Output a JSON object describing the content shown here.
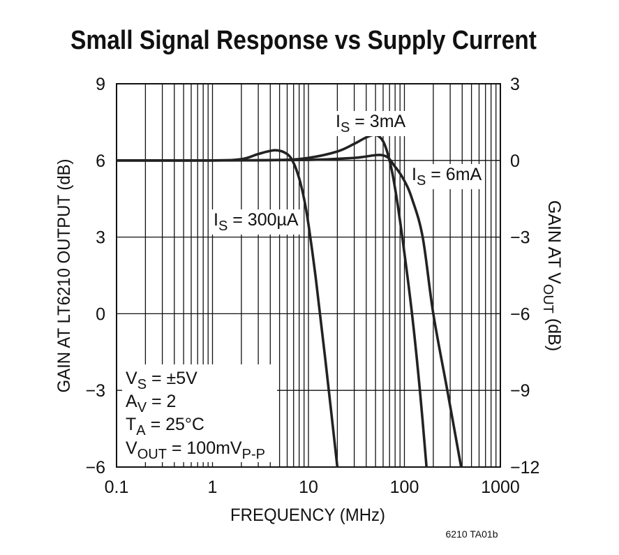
{
  "chart_data": {
    "type": "line",
    "title": "Small Signal Response vs Supply Current",
    "x_label": "FREQUENCY (MHz)",
    "y_label": "GAIN AT LT6210 OUTPUT (dB)",
    "y2_label": {
      "segments": [
        {
          "text": "GAIN AT V"
        },
        {
          "text": "OUT",
          "sub": true
        },
        {
          "text": " (dB)"
        }
      ]
    },
    "note": "6210 TA01b",
    "x_log": true,
    "log_minor_grid": true,
    "grid": true,
    "xlim": [
      0.1,
      1000
    ],
    "xticks": [
      0.1,
      1,
      10,
      100,
      1000
    ],
    "ylim": [
      -6,
      9
    ],
    "yticks": [
      {
        "value": -6,
        "label": "−6"
      },
      {
        "value": -3,
        "label": "−3"
      },
      0,
      3,
      6,
      9
    ],
    "y2lim": [
      -12,
      3
    ],
    "y2ticks": [
      {
        "value": -12,
        "label": "−12"
      },
      {
        "value": -9,
        "label": "−9"
      },
      {
        "value": -6,
        "label": "−6"
      },
      {
        "value": -3,
        "label": "−3"
      },
      0,
      3
    ],
    "series": [
      {
        "color": "#222222",
        "x": [
          0.1,
          1,
          2,
          3,
          4.5,
          6,
          7,
          8,
          9,
          10,
          12,
          15,
          20
        ],
        "values": [
          6,
          6,
          6.05,
          6.25,
          6.4,
          6.25,
          5.9,
          5.3,
          4.5,
          3.5,
          1.3,
          -1.8,
          -6
        ]
      },
      {
        "color": "#222222",
        "x": [
          0.1,
          1,
          5,
          10,
          20,
          30,
          40,
          50,
          60,
          70,
          80,
          95,
          120,
          145,
          170
        ],
        "values": [
          6,
          6,
          6.02,
          6.1,
          6.35,
          6.65,
          6.9,
          7.0,
          6.75,
          6.0,
          4.9,
          3,
          0,
          -3,
          -6
        ]
      },
      {
        "color": "#222222",
        "x": [
          0.1,
          1,
          10,
          30,
          60,
          80,
          100,
          120,
          155,
          200,
          280,
          390
        ],
        "values": [
          6,
          6,
          6.02,
          6.1,
          6.2,
          5.75,
          5.2,
          4.5,
          3,
          0,
          -3,
          -6
        ]
      }
    ],
    "annotations": [
      {
        "segments": [
          {
            "text": "I"
          },
          {
            "text": "S",
            "sub": true
          },
          {
            "text": " = 300µA"
          }
        ]
      },
      {
        "segments": [
          {
            "text": "I"
          },
          {
            "text": "S",
            "sub": true
          },
          {
            "text": " = 3mA"
          }
        ]
      },
      {
        "segments": [
          {
            "text": "I"
          },
          {
            "text": "S",
            "sub": true
          },
          {
            "text": " = 6mA"
          }
        ]
      }
    ],
    "conditions": [
      {
        "segments": [
          {
            "text": "V"
          },
          {
            "text": "S",
            "sub": true
          },
          {
            "text": " = ±5V"
          }
        ]
      },
      {
        "segments": [
          {
            "text": "A"
          },
          {
            "text": "V",
            "sub": true
          },
          {
            "text": " = 2"
          }
        ]
      },
      {
        "segments": [
          {
            "text": "T"
          },
          {
            "text": "A",
            "sub": true
          },
          {
            "text": " = 25°C"
          }
        ]
      },
      {
        "segments": [
          {
            "text": "V"
          },
          {
            "text": "OUT",
            "sub": true
          },
          {
            "text": " = 100mV"
          },
          {
            "text": "P-P",
            "sub": true
          }
        ]
      }
    ]
  }
}
